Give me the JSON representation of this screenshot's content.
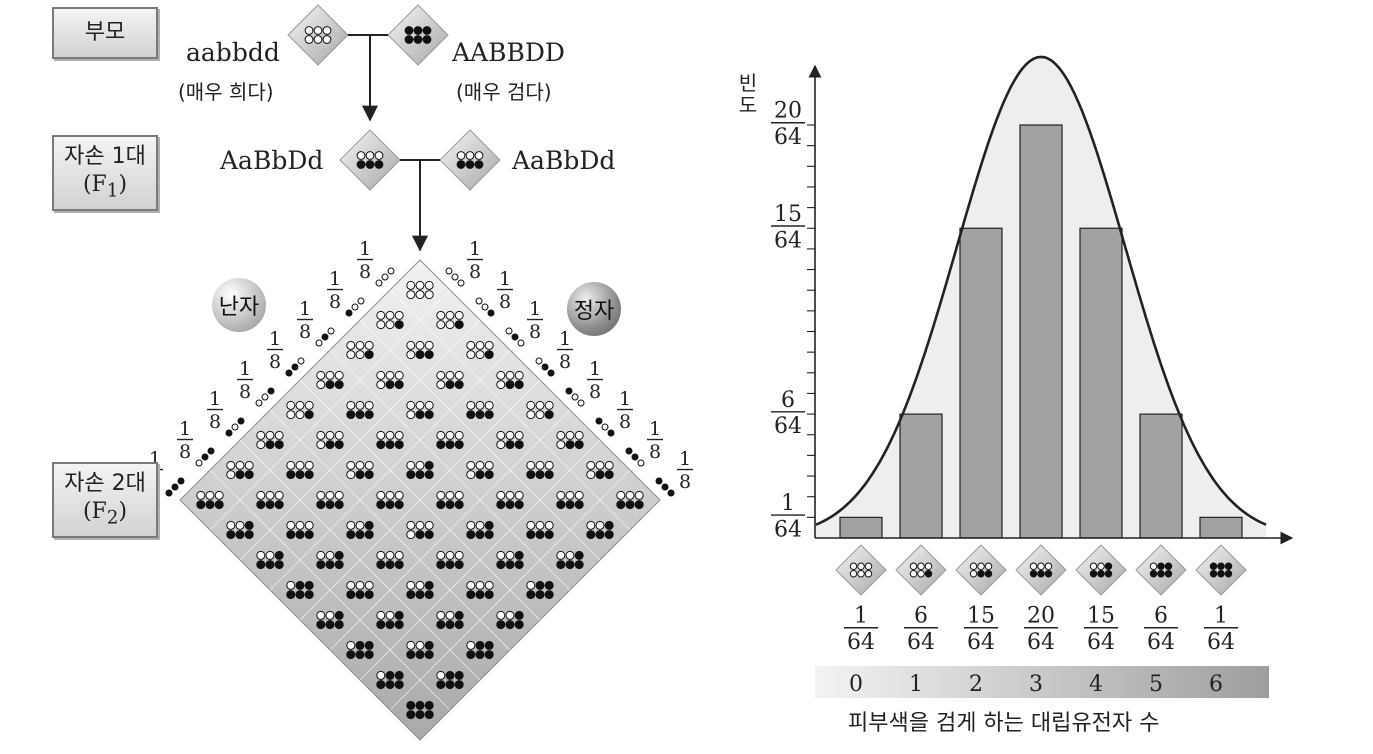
{
  "generations": {
    "parent": "부모",
    "f1_line1": "자손 1대",
    "f1_line2": "F",
    "f1_sub": "1",
    "f2_line1": "자손 2대",
    "f2_line2": "F",
    "f2_sub": "2"
  },
  "parents": {
    "left_genotype": "aabbdd",
    "left_desc": "(매우 희다)",
    "right_genotype": "AABBDD",
    "right_desc": "(매우 검다)"
  },
  "f1": {
    "genotype": "AaBbDd"
  },
  "gametes": {
    "egg_label": "난자",
    "sperm_label": "정자",
    "fraction_num": "1",
    "fraction_den": "8"
  },
  "colors": {
    "bar": "#a2a2a4",
    "bar_edge": "#222222",
    "curve_fill": "#eeeeee",
    "dark_dot": "#111111",
    "light_dot": "#ffffff"
  },
  "chart_data": {
    "type": "bar",
    "categories": [
      "0",
      "1",
      "2",
      "3",
      "4",
      "5",
      "6"
    ],
    "values": [
      1,
      6,
      15,
      20,
      15,
      6,
      1
    ],
    "denominator": "64",
    "xlabel": "피부색을 검게 하는 대립유전자 수",
    "ylabel": "빈도",
    "ytick_labels": [
      {
        "value": 1,
        "num": "1",
        "den": "64"
      },
      {
        "value": 6,
        "num": "6",
        "den": "64"
      },
      {
        "value": 15,
        "num": "15",
        "den": "64"
      },
      {
        "value": 20,
        "num": "20",
        "den": "64"
      }
    ],
    "ylim": [
      0,
      20
    ],
    "grid": false,
    "overlay": "normal curve"
  }
}
